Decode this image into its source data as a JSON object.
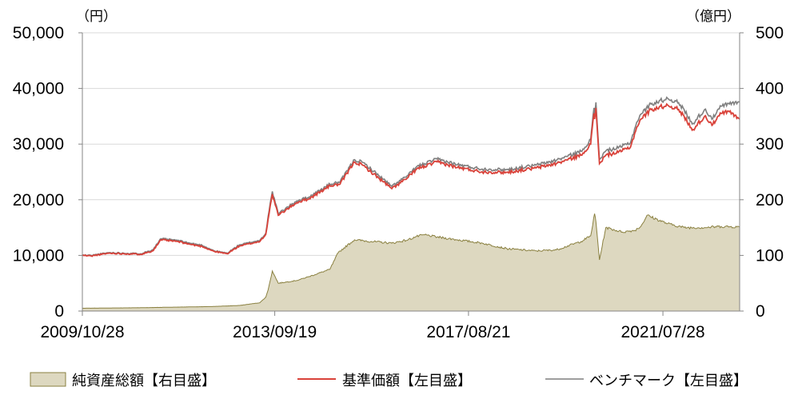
{
  "chart_data": {
    "type": "line",
    "left_axis": {
      "unit_label": "（円）",
      "ylim": [
        0,
        50000
      ],
      "ticks": [
        "0",
        "10,000",
        "20,000",
        "30,000",
        "40,000",
        "50,000"
      ]
    },
    "right_axis": {
      "unit_label": "（億円）",
      "ylim": [
        0,
        500
      ],
      "ticks": [
        "0",
        "100",
        "200",
        "300",
        "400",
        "500"
      ]
    },
    "x_axis": {
      "range": [
        "2009-10-28",
        "2023-02-15"
      ],
      "tick_labels": [
        "2009/10/28",
        "2013/09/19",
        "2017/08/21",
        "2021/07/28"
      ],
      "tick_dates": [
        "2009-10-28",
        "2013-09-19",
        "2017-08-21",
        "2021-07-28"
      ]
    },
    "grid": "horizontal",
    "legend_position": "bottom",
    "colors": {
      "net_assets_fill": "#ddd8c0",
      "net_assets_line": "#8a8040",
      "nav": "#d9423a",
      "benchmark": "#7f7f7f",
      "axis": "#868686",
      "grid": "#d9d9d9"
    },
    "series": [
      {
        "name": "純資産総額【右目盛】",
        "type": "area",
        "axis": "right",
        "x": [
          "2009-10-28",
          "2010-06-01",
          "2011-01-01",
          "2011-09-01",
          "2012-06-01",
          "2013-01-01",
          "2013-06-01",
          "2013-07-15",
          "2013-08-01",
          "2013-09-01",
          "2013-10-15",
          "2014-03-01",
          "2014-06-01",
          "2014-11-01",
          "2015-01-01",
          "2015-05-01",
          "2015-09-01",
          "2016-02-01",
          "2016-06-01",
          "2016-08-01",
          "2016-10-01",
          "2017-01-01",
          "2017-06-01",
          "2017-12-01",
          "2018-06-01",
          "2019-01-01",
          "2019-06-01",
          "2019-12-01",
          "2020-02-10",
          "2020-03-10",
          "2020-03-20",
          "2020-04-15",
          "2020-06-01",
          "2020-10-01",
          "2021-01-01",
          "2021-02-15",
          "2021-04-01",
          "2021-09-01",
          "2022-01-01",
          "2022-06-01",
          "2022-10-01",
          "2023-02-15"
        ],
        "values": [
          5,
          5.5,
          6,
          7,
          8,
          10,
          15,
          25,
          38,
          72,
          50,
          55,
          62,
          75,
          105,
          128,
          125,
          122,
          128,
          134,
          137,
          133,
          128,
          122,
          112,
          108,
          110,
          125,
          135,
          175,
          160,
          92,
          150,
          142,
          145,
          152,
          172,
          157,
          150,
          150,
          152,
          151
        ]
      },
      {
        "name": "基準価額【左目盛】",
        "type": "line",
        "axis": "left",
        "x": [
          "2009-10-28",
          "2010-01-01",
          "2010-05-15",
          "2011-01-01",
          "2011-04-01",
          "2011-06-01",
          "2011-10-01",
          "2012-01-01",
          "2012-04-01",
          "2012-07-01",
          "2012-10-01",
          "2013-01-01",
          "2013-06-01",
          "2013-07-15",
          "2013-08-01",
          "2013-09-01",
          "2013-10-15",
          "2014-03-01",
          "2014-06-01",
          "2014-11-01",
          "2015-01-15",
          "2015-05-01",
          "2015-07-01",
          "2015-09-01",
          "2016-02-01",
          "2016-06-01",
          "2016-08-01",
          "2016-10-01",
          "2017-01-01",
          "2017-06-01",
          "2017-12-01",
          "2018-06-01",
          "2019-01-01",
          "2019-06-01",
          "2019-12-01",
          "2020-02-10",
          "2020-02-20",
          "2020-03-05",
          "2020-03-10",
          "2020-03-20",
          "2020-04-15",
          "2020-06-01",
          "2020-09-01",
          "2020-12-01",
          "2021-01-15",
          "2021-02-15",
          "2021-05-01",
          "2021-09-01",
          "2021-11-01",
          "2022-01-01",
          "2022-03-01",
          "2022-06-01",
          "2022-08-01",
          "2022-10-01",
          "2022-12-01",
          "2023-02-15"
        ],
        "values": [
          10000,
          9900,
          10400,
          10200,
          10800,
          12800,
          12500,
          12000,
          11600,
          10700,
          10300,
          11700,
          12500,
          13800,
          16500,
          21000,
          17200,
          19500,
          20200,
          22500,
          22800,
          26800,
          26200,
          25000,
          22000,
          24000,
          25500,
          26000,
          26800,
          25800,
          25000,
          24900,
          25700,
          26500,
          28000,
          30000,
          32500,
          35500,
          34500,
          36500,
          26500,
          28000,
          28500,
          29500,
          33000,
          34500,
          36200,
          37000,
          36500,
          35000,
          32500,
          35000,
          33500,
          35500,
          35800,
          34500
        ]
      },
      {
        "name": "ベンチマーク【左目盛】",
        "type": "line",
        "axis": "left",
        "x": [
          "2009-10-28",
          "2010-01-01",
          "2010-05-15",
          "2011-01-01",
          "2011-04-01",
          "2011-06-01",
          "2011-10-01",
          "2012-01-01",
          "2012-04-01",
          "2012-07-01",
          "2012-10-01",
          "2013-01-01",
          "2013-06-01",
          "2013-07-15",
          "2013-08-01",
          "2013-09-01",
          "2013-10-15",
          "2014-03-01",
          "2014-06-01",
          "2014-11-01",
          "2015-01-15",
          "2015-05-01",
          "2015-07-01",
          "2015-09-01",
          "2016-02-01",
          "2016-06-01",
          "2016-08-01",
          "2016-10-01",
          "2017-01-01",
          "2017-06-01",
          "2017-12-01",
          "2018-06-01",
          "2019-01-01",
          "2019-06-01",
          "2019-12-01",
          "2020-02-10",
          "2020-02-20",
          "2020-03-05",
          "2020-03-10",
          "2020-03-20",
          "2020-04-15",
          "2020-06-01",
          "2020-09-01",
          "2020-12-01",
          "2021-01-15",
          "2021-02-15",
          "2021-05-01",
          "2021-09-01",
          "2021-11-01",
          "2022-01-01",
          "2022-03-01",
          "2022-06-01",
          "2022-08-01",
          "2022-10-01",
          "2022-12-01",
          "2023-02-15"
        ],
        "values": [
          10050,
          10000,
          10500,
          10300,
          11000,
          13000,
          12700,
          12200,
          11800,
          10800,
          10400,
          11900,
          12700,
          14000,
          17000,
          21500,
          17500,
          19800,
          20500,
          22800,
          23200,
          27200,
          26700,
          25500,
          22400,
          24400,
          25900,
          26500,
          27300,
          26300,
          25500,
          25400,
          26200,
          27100,
          28700,
          30800,
          33300,
          36500,
          35500,
          37500,
          27200,
          28800,
          29300,
          30300,
          33900,
          35400,
          37200,
          38200,
          37700,
          36200,
          33600,
          36200,
          34600,
          36800,
          37200,
          37600
        ]
      }
    ]
  }
}
